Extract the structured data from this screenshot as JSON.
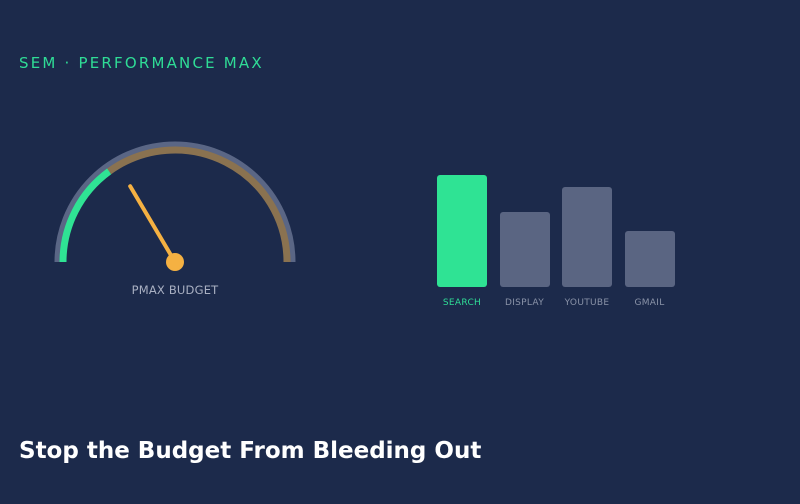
{
  "eyebrow": "SEM · PERFORMANCE MAX",
  "gauge": {
    "label": "PMAX BUDGET",
    "green_fraction": 0.3,
    "needle_fraction": 0.33,
    "colors": {
      "track": "#5a6685",
      "green": "#2fe394",
      "amber": "#8a7250",
      "needle": "#f5b142"
    }
  },
  "channels": {
    "items": [
      {
        "label": "SEARCH",
        "value": 112,
        "color": "#2fe394",
        "label_color": "#2fdc96"
      },
      {
        "label": "DISPLAY",
        "value": 75,
        "color": "#5a6582",
        "label_color": "#8a93a8"
      },
      {
        "label": "YOUTUBE",
        "value": 100,
        "color": "#5a6582",
        "label_color": "#8a93a8"
      },
      {
        "label": "GMAIL",
        "value": 56,
        "color": "#5a6582",
        "label_color": "#8a93a8"
      }
    ]
  },
  "headline": "Stop the Budget From Bleeding Out"
}
